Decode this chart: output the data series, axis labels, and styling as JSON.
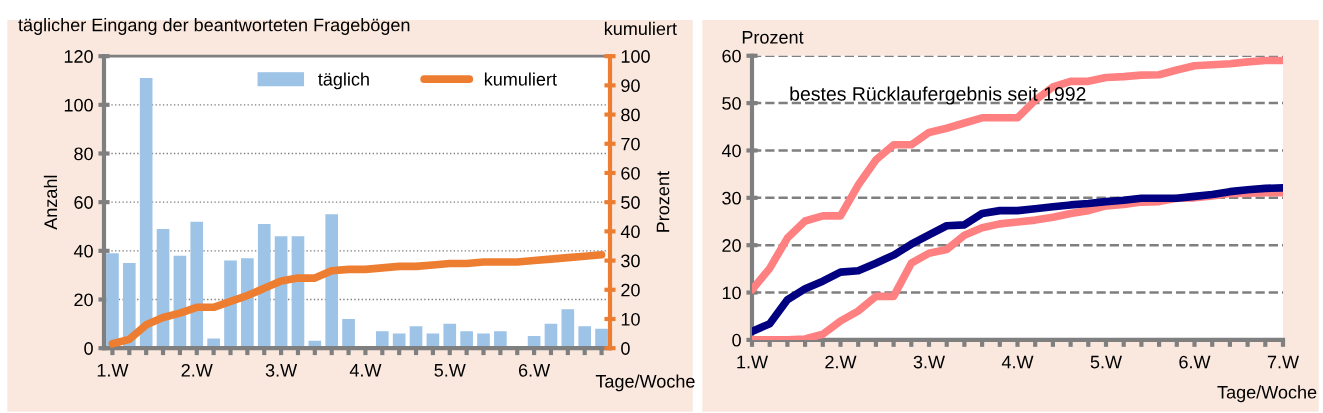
{
  "chart_data": [
    {
      "type": "bar",
      "title": "täglicher Eingang der beantworteten Fragebögen",
      "ylabel": "Anzahl",
      "y2label": "Prozent",
      "xlabel": "Tage/Woche",
      "annotations": [
        "kumuliert"
      ],
      "categories": [
        "1.W",
        null,
        null,
        null,
        null,
        "2.W",
        null,
        null,
        null,
        null,
        "3.W",
        null,
        null,
        null,
        null,
        "4.W",
        null,
        null,
        null,
        null,
        "5.W",
        null,
        null,
        null,
        null,
        "6.W",
        null,
        null,
        null,
        null
      ],
      "series": [
        {
          "name": "täglich",
          "type": "bar",
          "color": "#9dc3e6",
          "values": [
            39,
            35,
            111,
            49,
            38,
            52,
            4,
            36,
            37,
            51,
            46,
            46,
            3,
            55,
            12,
            0,
            7,
            6,
            9,
            6,
            10,
            7,
            6,
            7,
            0,
            5,
            10,
            16,
            9,
            8
          ]
        },
        {
          "name": "kumuliert",
          "type": "line",
          "axis": "y2",
          "color": "#ed7d31",
          "values": [
            1.5,
            3,
            8,
            10.5,
            12,
            14,
            14,
            16,
            18,
            20.5,
            23,
            24,
            24,
            26.5,
            27,
            27,
            27.5,
            28,
            28,
            28.5,
            29,
            29,
            29.5,
            29.5,
            29.5,
            30,
            30.5,
            31,
            31.5,
            32
          ]
        }
      ],
      "ylim": [
        0,
        120
      ],
      "yticks": [
        0,
        20,
        40,
        60,
        80,
        100,
        120
      ],
      "y2lim": [
        0,
        100
      ],
      "y2ticks": [
        0,
        10,
        20,
        30,
        40,
        50,
        60,
        70,
        80,
        90,
        100
      ],
      "grid": "y",
      "legend": "top"
    },
    {
      "type": "line",
      "ylabel": "Prozent",
      "xlabel": "Tage/Woche",
      "annotations": [
        "bestes Rücklaufergebnis seit 1992"
      ],
      "categories": [
        "1.W",
        null,
        null,
        null,
        null,
        "2.W",
        null,
        null,
        null,
        null,
        "3.W",
        null,
        null,
        null,
        null,
        "4.W",
        null,
        null,
        null,
        null,
        "5.W",
        null,
        null,
        null,
        null,
        "6.W",
        null,
        null,
        null,
        null,
        "7.W"
      ],
      "series": [
        {
          "color": "#ff8080",
          "values": [
            10.6,
            15.1,
            21.5,
            25.1,
            26.2,
            26.2,
            32.7,
            38,
            41.2,
            41.2,
            43.8,
            44.7,
            45.8,
            46.9,
            46.9,
            46.9,
            50.6,
            53.4,
            54.6,
            54.6,
            55.4,
            55.6,
            55.9,
            56,
            57,
            57.9,
            58.1,
            58.3,
            58.7,
            59,
            59
          ]
        },
        {
          "color": "#ff8080",
          "values": [
            0,
            0,
            0,
            0.2,
            1.2,
            4,
            6.1,
            9.2,
            9.2,
            16.2,
            18.3,
            19.1,
            22.1,
            23.7,
            24.5,
            24.9,
            25.3,
            25.9,
            26.7,
            27.3,
            28.3,
            28.6,
            29.1,
            29.2,
            29.9,
            30,
            30.4,
            30.9,
            31,
            31.1,
            31.1
          ]
        },
        {
          "color": "#000080",
          "values": [
            1.8,
            3.4,
            8.5,
            10.8,
            12.4,
            14.3,
            14.6,
            16.2,
            17.9,
            20.2,
            22.2,
            24.1,
            24.3,
            26.7,
            27.3,
            27.3,
            27.7,
            28.1,
            28.5,
            28.8,
            29.2,
            29.5,
            29.9,
            29.9,
            29.9,
            30.3,
            30.7,
            31.3,
            31.7,
            32,
            32.1
          ]
        }
      ],
      "ylim": [
        0,
        60
      ],
      "yticks": [
        0,
        10,
        20,
        30,
        40,
        50,
        60
      ],
      "grid": "y",
      "legend": false
    }
  ]
}
